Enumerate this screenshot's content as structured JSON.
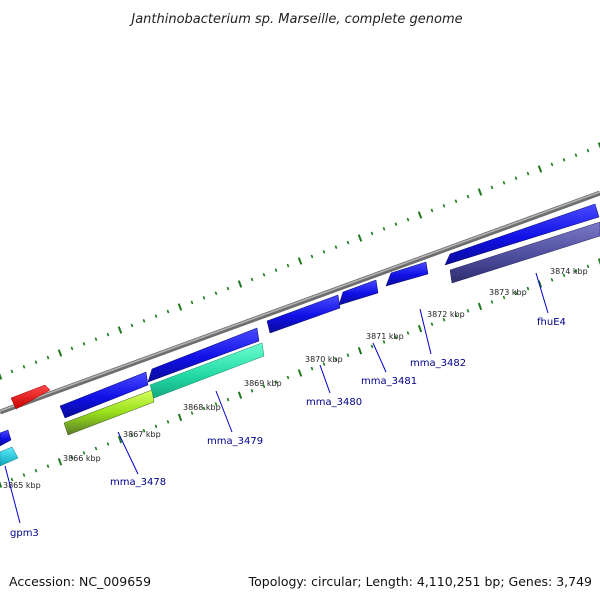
{
  "title": "Janthinobacterium sp. Marseille, complete genome",
  "footer": {
    "accession": "Accession: NC_009659",
    "summary": "Topology: circular; Length: 4,110,251 bp; Genes: 3,749"
  },
  "colors": {
    "backbone": "#8a8a8a",
    "tick": "#1f7a1f",
    "forward_gene": "#1010e6",
    "rna_gene": "#e81010",
    "gene_label": "#00008b",
    "cog_green_light": "#adff2f",
    "cog_teal": "#2be3b0",
    "cog_cyan": "#14c8d8",
    "cog_purple": "#4a4a9a"
  },
  "ticks": [
    {
      "label": "3865 kbp"
    },
    {
      "label": "3866 kbp"
    },
    {
      "label": "3867 kbp"
    },
    {
      "label": "3868 kbp"
    },
    {
      "label": "3869 kbp"
    },
    {
      "label": "3870 kbp"
    },
    {
      "label": "3871 kbp"
    },
    {
      "label": "3872 kbp"
    },
    {
      "label": "3873 kbp"
    },
    {
      "label": "3874 kbp"
    }
  ],
  "genes": [
    {
      "label": "gpm3"
    },
    {
      "label": "mma_3478"
    },
    {
      "label": "mma_3479"
    },
    {
      "label": "mma_3480"
    },
    {
      "label": "mma_3481"
    },
    {
      "label": "mma_3482"
    },
    {
      "label": "fhuE4"
    }
  ]
}
